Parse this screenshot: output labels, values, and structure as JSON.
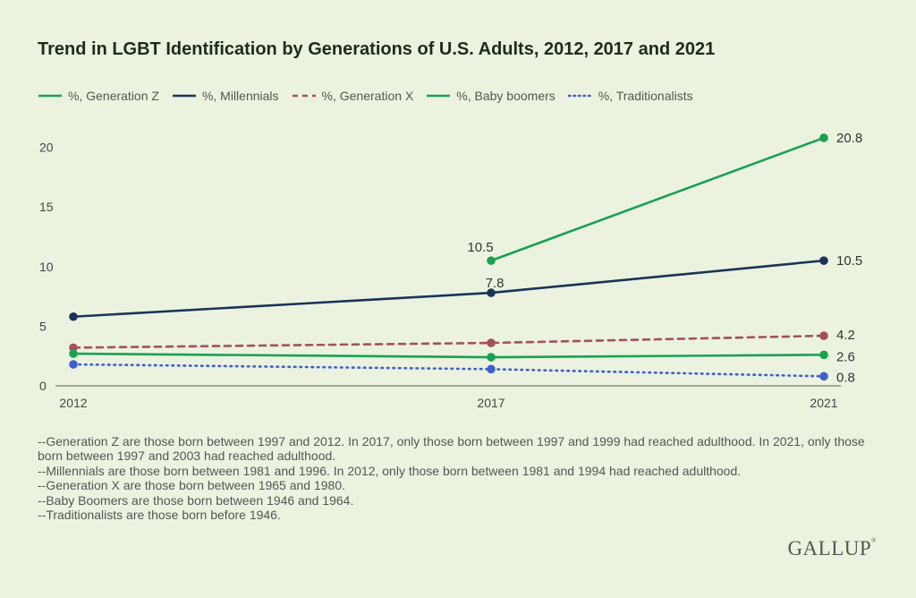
{
  "chart_data": {
    "type": "line",
    "title": "Trend in LGBT Identification by Generations of U.S. Adults, 2012, 2017 and 2021",
    "x": [
      "2012",
      "2017",
      "2021"
    ],
    "yticks": [
      "0",
      "5",
      "10",
      "15",
      "20"
    ],
    "ylim": [
      0,
      22
    ],
    "grid": false,
    "legend_position": "top-left",
    "series": [
      {
        "key": "genz",
        "name": "%, Generation Z",
        "values": [
          null,
          10.5,
          20.8
        ],
        "color": "#1aa150",
        "dash": "solid",
        "labels": [
          null,
          "10.5",
          "20.8"
        ]
      },
      {
        "key": "millennials",
        "name": "%, Millennials",
        "values": [
          5.8,
          7.8,
          10.5
        ],
        "color": "#1b3358",
        "dash": "solid",
        "labels": [
          null,
          "7.8",
          "10.5"
        ]
      },
      {
        "key": "genx",
        "name": "%, Generation X",
        "values": [
          3.2,
          3.6,
          4.2
        ],
        "color": "#a3505e",
        "dash": "dashed",
        "labels": [
          null,
          null,
          "4.2"
        ]
      },
      {
        "key": "boomers",
        "name": "%, Baby boomers",
        "values": [
          2.7,
          2.4,
          2.6
        ],
        "color": "#1aa150",
        "dash": "solid",
        "labels": [
          null,
          null,
          "2.6"
        ]
      },
      {
        "key": "traditionalists",
        "name": "%, Traditionalists",
        "values": [
          1.8,
          1.4,
          0.8
        ],
        "color": "#3f5fcf",
        "dash": "dotted",
        "labels": [
          null,
          null,
          "0.8"
        ]
      }
    ]
  },
  "notes": [
    "--Generation Z are those born between 1997 and 2012. In 2017, only those born between 1997 and 1999 had reached adulthood. In 2021, only those born between 1997 and 2003 had reached adulthood.",
    "--Millennials are those born between 1981 and 1996. In 2012, only those born between 1981 and 1994 had reached adulthood.",
    "--Generation X are those born between 1965 and 1980.",
    "--Baby Boomers are those born between 1946 and 1964.",
    "--Traditionalists are those born before 1946."
  ],
  "logo": "GALLUP",
  "logo_mark": "®"
}
